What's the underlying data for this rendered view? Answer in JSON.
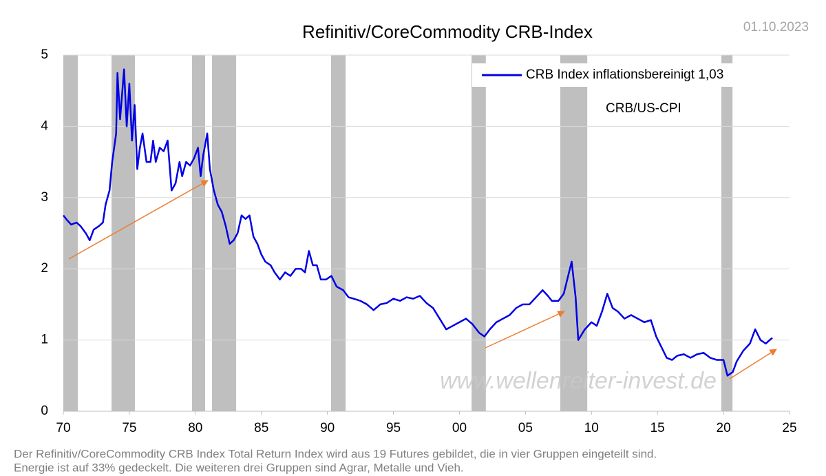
{
  "chart_data": {
    "type": "line",
    "title": "Refinitiv/CoreCommodity CRB-Index",
    "date": "01.10.2023",
    "annotation": "CRB/US-CPI",
    "watermark": "www.wellenreiter-invest.de",
    "footnote": [
      "Der Refinitiv/CoreCommodity CRB Index Total Return Index wird aus 19 Futures gebildet, die in vier Gruppen eingeteilt sind.",
      "Energie ist auf  33% gedeckelt. Die weiteren drei Gruppen sind Agrar, Metalle und Vieh."
    ],
    "xlim": [
      1970,
      2025
    ],
    "xticks": [
      {
        "value": 1970,
        "label": "70"
      },
      {
        "value": 1975,
        "label": "75"
      },
      {
        "value": 1980,
        "label": "80"
      },
      {
        "value": 1985,
        "label": "85"
      },
      {
        "value": 1990,
        "label": "90"
      },
      {
        "value": 1995,
        "label": "95"
      },
      {
        "value": 2000,
        "label": "00"
      },
      {
        "value": 2005,
        "label": "05"
      },
      {
        "value": 2010,
        "label": "10"
      },
      {
        "value": 2015,
        "label": "15"
      },
      {
        "value": 2020,
        "label": "20"
      },
      {
        "value": 2025,
        "label": "25"
      }
    ],
    "ylim": [
      0,
      5
    ],
    "yticks": [
      0,
      1,
      2,
      3,
      4,
      5
    ],
    "grid": true,
    "recession_color": "#bfbfbf",
    "recessions": [
      [
        1970.0,
        1971.1
      ],
      [
        1973.65,
        1975.42
      ],
      [
        1979.75,
        1980.74
      ],
      [
        1981.26,
        1983.09
      ],
      [
        1990.28,
        1991.38
      ],
      [
        2000.92,
        2002.0
      ],
      [
        2007.64,
        2009.68
      ],
      [
        2019.84,
        2020.68
      ]
    ],
    "x": [
      1970.0,
      1970.3,
      1970.6,
      1971.0,
      1971.3,
      1971.7,
      1972.0,
      1972.3,
      1972.7,
      1973.0,
      1973.2,
      1973.5,
      1973.7,
      1974.0,
      1974.1,
      1974.3,
      1974.6,
      1974.8,
      1975.0,
      1975.2,
      1975.4,
      1975.6,
      1975.8,
      1976.0,
      1976.3,
      1976.6,
      1976.8,
      1977.0,
      1977.3,
      1977.6,
      1977.9,
      1978.2,
      1978.5,
      1978.8,
      1979.0,
      1979.3,
      1979.6,
      1979.9,
      1980.2,
      1980.4,
      1980.6,
      1980.9,
      1981.1,
      1981.4,
      1981.7,
      1982.0,
      1982.3,
      1982.6,
      1982.9,
      1983.2,
      1983.5,
      1983.8,
      1984.1,
      1984.4,
      1984.7,
      1985.0,
      1985.3,
      1985.7,
      1986.0,
      1986.4,
      1986.8,
      1987.2,
      1987.6,
      1988.0,
      1988.3,
      1988.6,
      1988.9,
      1989.2,
      1989.5,
      1989.9,
      1990.3,
      1990.7,
      1991.2,
      1991.6,
      1992.0,
      1992.5,
      1993.0,
      1993.5,
      1994.0,
      1994.5,
      1995.0,
      1995.5,
      1996.0,
      1996.5,
      1997.0,
      1997.5,
      1998.0,
      1998.5,
      1999.0,
      1999.5,
      2000.0,
      2000.5,
      2001.0,
      2001.5,
      2001.9,
      2002.3,
      2002.8,
      2003.3,
      2003.8,
      2004.3,
      2004.8,
      2005.3,
      2005.8,
      2006.3,
      2006.7,
      2007.0,
      2007.5,
      2007.9,
      2008.3,
      2008.5,
      2008.8,
      2009.0,
      2009.5,
      2010.0,
      2010.4,
      2010.8,
      2011.2,
      2011.6,
      2012.0,
      2012.5,
      2013.0,
      2013.5,
      2014.0,
      2014.5,
      2014.9,
      2015.3,
      2015.7,
      2016.1,
      2016.5,
      2017.0,
      2017.5,
      2018.0,
      2018.5,
      2019.0,
      2019.5,
      2020.0,
      2020.3,
      2020.7,
      2021.0,
      2021.5,
      2022.0,
      2022.4,
      2022.8,
      2023.2,
      2023.5,
      2023.7
    ],
    "series": [
      {
        "name": "CRB Index inflationsbereinigt 1,03",
        "color": "#0000e6",
        "values": [
          2.75,
          2.68,
          2.62,
          2.65,
          2.6,
          2.5,
          2.4,
          2.55,
          2.6,
          2.65,
          2.9,
          3.1,
          3.5,
          3.9,
          4.75,
          4.1,
          4.8,
          4.0,
          4.6,
          3.8,
          4.3,
          3.4,
          3.7,
          3.9,
          3.5,
          3.5,
          3.8,
          3.5,
          3.7,
          3.65,
          3.8,
          3.1,
          3.2,
          3.5,
          3.3,
          3.5,
          3.45,
          3.55,
          3.7,
          3.3,
          3.6,
          3.9,
          3.4,
          3.1,
          2.9,
          2.8,
          2.6,
          2.35,
          2.4,
          2.5,
          2.75,
          2.7,
          2.75,
          2.45,
          2.35,
          2.2,
          2.1,
          2.05,
          1.95,
          1.85,
          1.95,
          1.9,
          2.0,
          2.0,
          1.95,
          2.25,
          2.05,
          2.05,
          1.85,
          1.85,
          1.9,
          1.75,
          1.7,
          1.6,
          1.58,
          1.55,
          1.5,
          1.42,
          1.5,
          1.52,
          1.58,
          1.55,
          1.6,
          1.58,
          1.62,
          1.52,
          1.45,
          1.3,
          1.15,
          1.2,
          1.25,
          1.3,
          1.22,
          1.1,
          1.05,
          1.15,
          1.25,
          1.3,
          1.35,
          1.45,
          1.5,
          1.5,
          1.6,
          1.7,
          1.62,
          1.55,
          1.55,
          1.65,
          1.95,
          2.1,
          1.6,
          1.0,
          1.15,
          1.25,
          1.2,
          1.4,
          1.65,
          1.45,
          1.4,
          1.3,
          1.35,
          1.3,
          1.25,
          1.28,
          1.05,
          0.9,
          0.75,
          0.72,
          0.78,
          0.8,
          0.75,
          0.8,
          0.82,
          0.75,
          0.72,
          0.72,
          0.5,
          0.55,
          0.7,
          0.85,
          0.95,
          1.15,
          1.0,
          0.95,
          1.0,
          1.03
        ]
      }
    ]
  }
}
